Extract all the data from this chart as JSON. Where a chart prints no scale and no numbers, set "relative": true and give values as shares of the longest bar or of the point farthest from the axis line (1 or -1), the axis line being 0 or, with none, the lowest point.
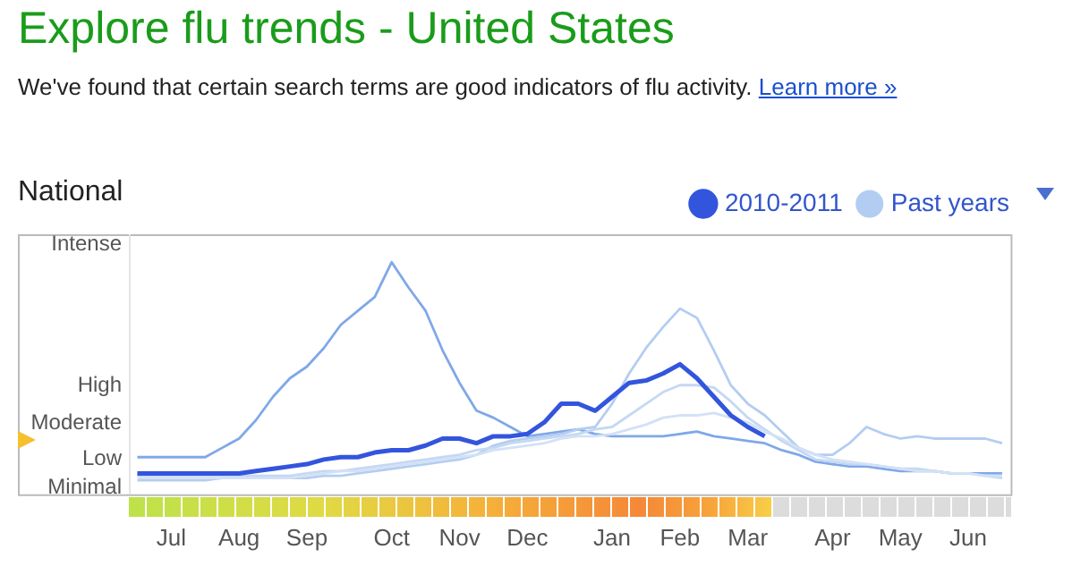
{
  "chart_data": {
    "type": "line",
    "title": "Explore flu trends - United States",
    "subtitle": "We've found that certain search terms are good indicators of flu activity.",
    "annotations": [
      "Learn more »",
      "National",
      "Intense",
      "High",
      "Moderate",
      "Low",
      "Minimal"
    ],
    "relative": true,
    "categories": [
      null,
      null,
      "Jul",
      null,
      null,
      null,
      "Aug",
      null,
      null,
      null,
      "Sep",
      null,
      null,
      null,
      null,
      "Oct",
      null,
      null,
      null,
      "Nov",
      null,
      null,
      null,
      "Dec",
      null,
      null,
      null,
      null,
      "Jan",
      null,
      null,
      null,
      "Feb",
      null,
      null,
      null,
      "Mar",
      null,
      null,
      null,
      null,
      "Apr",
      null,
      null,
      null,
      "May",
      null,
      null,
      null,
      "Jun",
      null,
      null
    ],
    "grid": false,
    "legend": "top right",
    "marker": "none",
    "series": [
      {
        "color": "#7fa8e8",
        "values": [
          0.16,
          0.16,
          0.16,
          0.16,
          0.16,
          0.2,
          0.24,
          0.32,
          0.42,
          0.5,
          0.55,
          0.63,
          0.73,
          0.79,
          0.85,
          1,
          0.89,
          0.79,
          0.62,
          0.48,
          0.36,
          0.33,
          0.29,
          0.25,
          0.26,
          0.27,
          0.28,
          0.26,
          0.25,
          0.25,
          0.25,
          0.25,
          0.26,
          0.27,
          0.25,
          0.24,
          0.23,
          0.22,
          0.19,
          0.17,
          0.14,
          0.13,
          0.12,
          0.12,
          0.11,
          0.1,
          0.1,
          0.1,
          0.09,
          0.09,
          0.09,
          0.09
        ]
      },
      {
        "name": "Past years",
        "color": "#b3cdf2",
        "values": [
          0.06,
          0.06,
          0.06,
          0.06,
          0.06,
          0.07,
          0.07,
          0.07,
          0.07,
          0.07,
          0.07,
          0.08,
          0.08,
          0.09,
          0.1,
          0.11,
          0.12,
          0.13,
          0.14,
          0.15,
          0.17,
          0.21,
          0.23,
          0.24,
          0.25,
          0.26,
          0.28,
          0.29,
          0.39,
          0.52,
          0.63,
          0.72,
          0.8,
          0.76,
          0.62,
          0.47,
          0.39,
          0.34,
          0.27,
          0.2,
          0.17,
          0.17,
          0.22,
          0.29,
          0.26,
          0.24,
          0.25,
          0.24,
          0.24,
          0.24,
          0.24,
          0.22
        ]
      },
      {
        "color": "#c5d8f3",
        "values": [
          0.08,
          0.08,
          0.08,
          0.08,
          0.08,
          0.08,
          0.08,
          0.08,
          0.08,
          0.08,
          0.09,
          0.1,
          0.1,
          0.11,
          0.12,
          0.13,
          0.14,
          0.15,
          0.16,
          0.17,
          0.19,
          0.2,
          0.22,
          0.23,
          0.24,
          0.25,
          0.26,
          0.28,
          0.29,
          0.34,
          0.39,
          0.44,
          0.47,
          0.47,
          0.46,
          0.4,
          0.33,
          0.28,
          0.23,
          0.19,
          0.15,
          0.14,
          0.13,
          0.13,
          0.12,
          0.11,
          0.11,
          0.1,
          0.09,
          0.09,
          0.08,
          0.07
        ]
      },
      {
        "color": "#d3e1f6",
        "values": [
          0.07,
          0.07,
          0.07,
          0.07,
          0.07,
          0.07,
          0.07,
          0.07,
          0.07,
          0.07,
          0.08,
          0.09,
          0.1,
          0.1,
          0.11,
          0.12,
          0.13,
          0.14,
          0.15,
          0.16,
          0.17,
          0.19,
          0.2,
          0.21,
          0.22,
          0.24,
          0.25,
          0.25,
          0.26,
          0.28,
          0.3,
          0.33,
          0.34,
          0.34,
          0.35,
          0.33,
          0.31,
          0.27,
          0.24,
          0.2,
          0.17,
          0.15,
          0.14,
          0.13,
          0.12,
          0.11,
          0.1,
          0.1,
          0.09,
          0.09,
          0.08,
          0.08
        ]
      },
      {
        "name": "2010-2011",
        "color": "#3355dd",
        "values": [
          0.09,
          0.09,
          0.09,
          0.09,
          0.09,
          0.09,
          0.09,
          0.1,
          0.11,
          0.12,
          0.13,
          0.15,
          0.16,
          0.16,
          0.18,
          0.19,
          0.19,
          0.21,
          0.24,
          0.24,
          0.22,
          0.25,
          0.25,
          0.26,
          0.31,
          0.39,
          0.39,
          0.36,
          0.42,
          0.48,
          0.49,
          0.52,
          0.56,
          0.5,
          0.42,
          0.34,
          0.29,
          0.25,
          null,
          null,
          null,
          null,
          null,
          null,
          null,
          null,
          null,
          null,
          null,
          null,
          null,
          null
        ]
      }
    ]
  }
}
